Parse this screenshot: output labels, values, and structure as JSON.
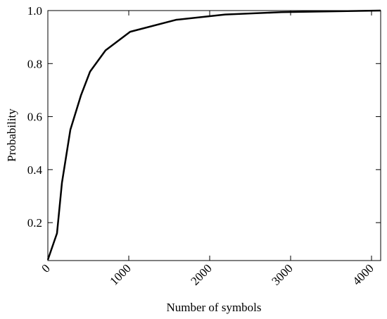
{
  "chart_data": {
    "type": "line",
    "x_label": "Number of symbols",
    "y_label": "Probability",
    "x": [
      0,
      113,
      174,
      278,
      409,
      522,
      713,
      1017,
      1583,
      2191,
      2887,
      4113
    ],
    "series": [
      {
        "name": "Probability",
        "color": "#000000",
        "values": [
          0.06,
          0.16,
          0.35,
          0.55,
          0.68,
          0.77,
          0.85,
          0.92,
          0.965,
          0.985,
          0.994,
          1.0
        ]
      }
    ],
    "xlim": [
      0,
      4113
    ],
    "ylim": [
      0.057,
      1.0
    ],
    "xticks": [
      0,
      1000,
      2000,
      3000,
      4000
    ],
    "yticks": [
      0.2,
      0.4,
      0.6,
      0.8,
      {
        "value": 1,
        "label": "1.0"
      }
    ]
  }
}
